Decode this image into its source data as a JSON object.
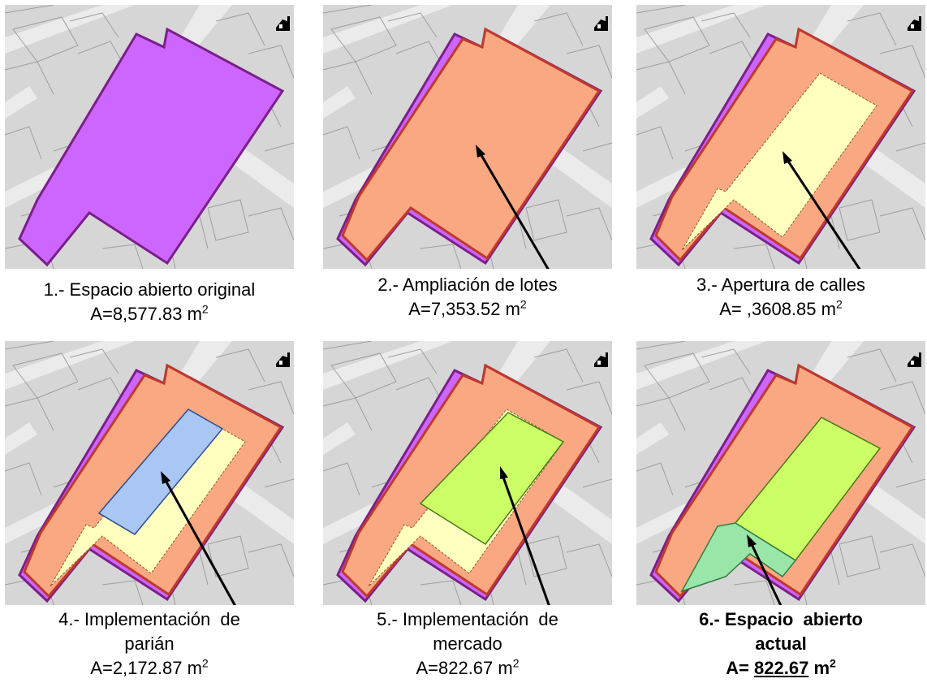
{
  "panels": [
    {
      "label_line1": "1.- Espacio abierto original",
      "label_line2": "",
      "area_prefix": "A=",
      "area_value": "8,577.83",
      "area_unit": "m",
      "area_exp": "2"
    },
    {
      "label_line1": "2.- Ampliación de lotes",
      "label_line2": "",
      "area_prefix": "A=",
      "area_value": "7,353.52",
      "area_unit": "m",
      "area_exp": "2"
    },
    {
      "label_line1": "3.- Apertura de calles",
      "label_line2": "",
      "area_prefix": "A= ",
      "area_value": ",3608.85",
      "area_unit": "m",
      "area_exp": "2"
    },
    {
      "label_line1": "4.- Implementación  de",
      "label_line2": "parián",
      "area_prefix": "A=",
      "area_value": "2,172.87",
      "area_unit": "m",
      "area_exp": "2"
    },
    {
      "label_line1": "5.- Implementación  de",
      "label_line2": "mercado",
      "area_prefix": "A=",
      "area_value": "822.67",
      "area_unit": "m",
      "area_exp": "2"
    },
    {
      "label_line1": "6.- Espacio  abierto",
      "label_line2": "actual",
      "area_prefix": "A= ",
      "area_value": "822.67",
      "area_unit": "m",
      "area_exp": "2"
    }
  ],
  "colors": {
    "original": "#cc66ff",
    "lotes": "#f9a882",
    "calles": "#ffffc0",
    "parian": "#a9c6f5",
    "mercado": "#ccff66",
    "actual": "#99e6a8",
    "outline": "#8b008b",
    "lotes_outline": "#c0392b",
    "map_bg": "#d6d6d6",
    "street": "#e8e8e8"
  },
  "icons": [
    "north-arrow-icon"
  ]
}
